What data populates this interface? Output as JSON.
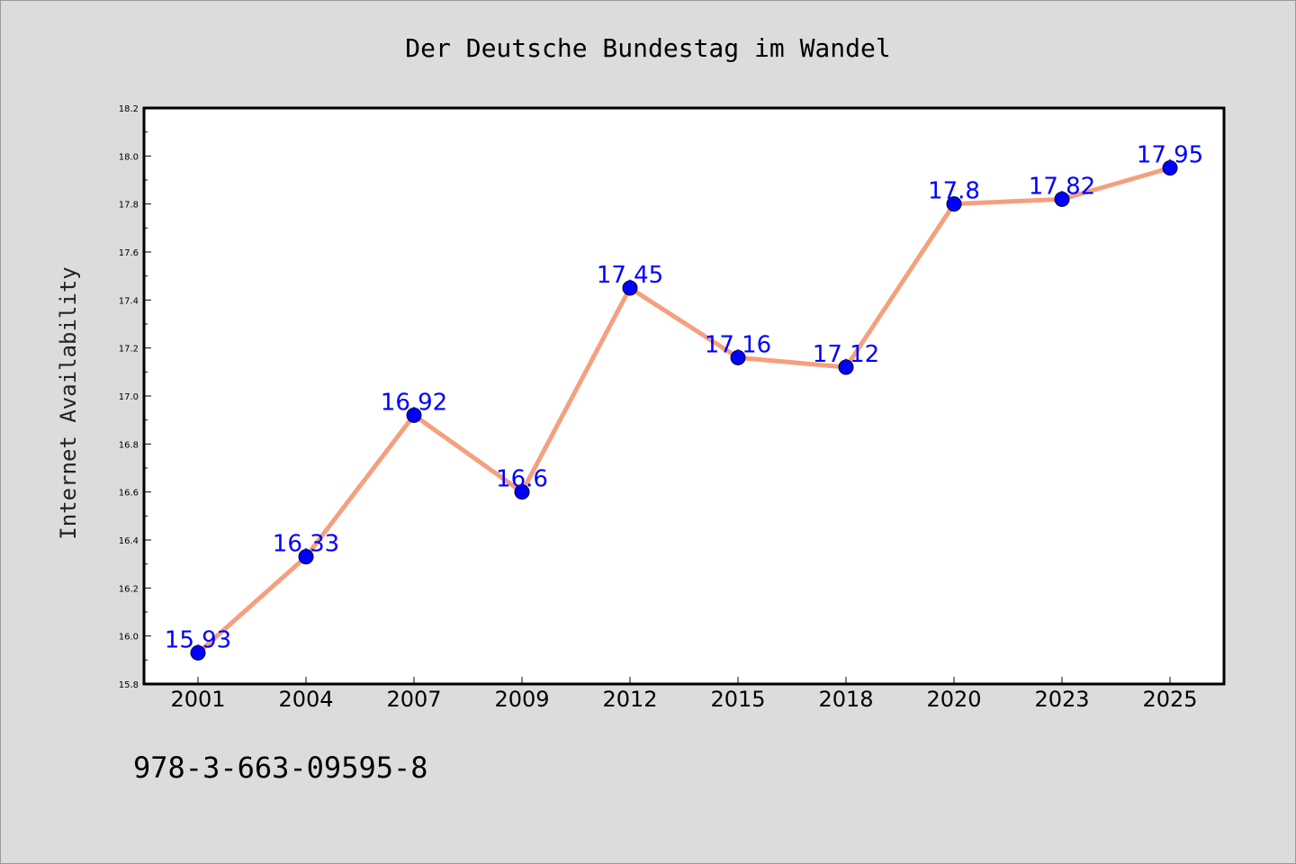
{
  "chart_data": {
    "type": "line",
    "title": "Der Deutsche Bundestag im Wandel",
    "ylabel": "Internet Availability",
    "xlabel": "",
    "categories": [
      "2001",
      "2004",
      "2007",
      "2009",
      "2012",
      "2015",
      "2018",
      "2020",
      "2023",
      "2025"
    ],
    "series": [
      {
        "values": [
          15.93,
          16.33,
          16.92,
          16.6,
          17.45,
          17.16,
          17.12,
          17.8,
          17.82,
          17.95
        ]
      }
    ],
    "data_labels": [
      "15.93",
      "16.33",
      "16.92",
      "16.6",
      "17.45",
      "17.16",
      "17.12",
      "17.8",
      "17.82",
      "17.95"
    ],
    "ylim": [
      15.8,
      18.2
    ],
    "yticks": [
      15.8,
      16.0,
      16.2,
      16.4,
      16.6,
      16.8,
      17.0,
      17.2,
      17.4,
      17.6,
      17.8,
      18.0,
      18.2
    ],
    "ytick_labels": [
      "15.8",
      "16.0",
      "16.2",
      "16.4",
      "16.6",
      "16.8",
      "17.0",
      "17.2",
      "17.4",
      "17.6",
      "17.8",
      "18.0",
      "18.2"
    ],
    "grid": false,
    "legend": "none",
    "colors": {
      "line": "#f4a07e",
      "marker": "#0000ff",
      "label": "#0000ff",
      "background": "#dcdcdc",
      "plot_background": "#ffffff"
    }
  },
  "footer": {
    "isbn": "978-3-663-09595-8"
  }
}
